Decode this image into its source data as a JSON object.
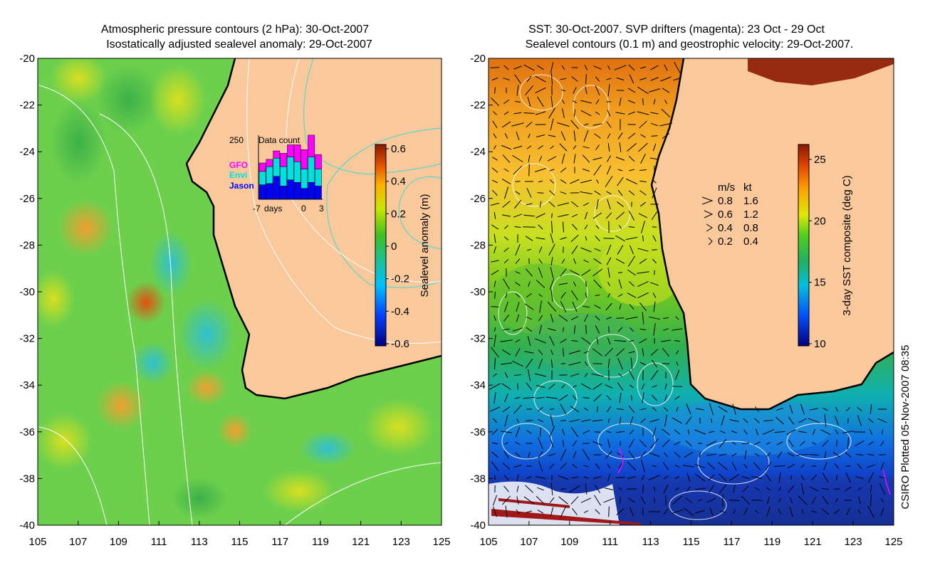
{
  "left_panel": {
    "title_line1": "Atmospheric pressure contours (2 hPa): 30-Oct-2007",
    "title_line2": "Isostatically adjusted sealevel anomaly: 29-Oct-2007",
    "y_ticks": [
      "-20",
      "-22",
      "-24",
      "-26",
      "-28",
      "-30",
      "-32",
      "-34",
      "-36",
      "-38",
      "-40"
    ],
    "x_ticks": [
      "105",
      "107",
      "109",
      "111",
      "113",
      "115",
      "117",
      "119",
      "121",
      "123",
      "125"
    ],
    "colorbar": {
      "label": "Sealevel anomaly (m)",
      "ticks": [
        "0.6",
        "0.4",
        "0.2",
        "0",
        "-0.2",
        "-0.4",
        "-0.6"
      ]
    },
    "inset": {
      "title": "Data count",
      "ymax": "250",
      "legend": [
        {
          "name": "GFO",
          "color": "#ff00ff"
        },
        {
          "name": "Envi",
          "color": "#00e0e0"
        },
        {
          "name": "Jason",
          "color": "#0000ff"
        }
      ],
      "x_labels": [
        "-7",
        "days",
        "0",
        "3"
      ],
      "days": [
        -7,
        -6,
        -5,
        -4,
        -3,
        -2,
        -1,
        0,
        1
      ],
      "jason": [
        60,
        65,
        95,
        55,
        80,
        70,
        45,
        70,
        55
      ],
      "envi": [
        55,
        70,
        75,
        80,
        95,
        85,
        80,
        105,
        70
      ],
      "gfo": [
        35,
        30,
        30,
        55,
        50,
        70,
        80,
        90,
        60
      ]
    }
  },
  "right_panel": {
    "title_line1": "SST: 30-Oct-2007. SVP drifters (magenta): 23 Oct - 29 Oct",
    "title_line2": "Sealevel contours (0.1 m) and geostrophic velocity: 29-Oct-2007.",
    "y_ticks": [
      "-20",
      "-22",
      "-24",
      "-26",
      "-28",
      "-30",
      "-32",
      "-34",
      "-36",
      "-38",
      "-40"
    ],
    "x_ticks": [
      "105",
      "107",
      "109",
      "111",
      "113",
      "115",
      "117",
      "119",
      "121",
      "123",
      "125"
    ],
    "colorbar": {
      "label": "3-day SST composite (deg C)",
      "ticks": [
        "25",
        "20",
        "15",
        "10"
      ]
    },
    "velocity_legend": {
      "header_ms": "m/s",
      "header_kt": "kt",
      "rows": [
        {
          "ms": "0.8",
          "kt": "1.6"
        },
        {
          "ms": "0.6",
          "kt": "1.2"
        },
        {
          "ms": "0.4",
          "kt": "0.8"
        },
        {
          "ms": "0.2",
          "kt": "0.4"
        }
      ]
    }
  },
  "credit": "CSIRO Plotted 05-Nov-2007 08:35",
  "colors": {
    "land": "#f9c89b",
    "coast": "#000000",
    "contour": "#ffffff",
    "pressure_contour": "#40d8d8"
  }
}
